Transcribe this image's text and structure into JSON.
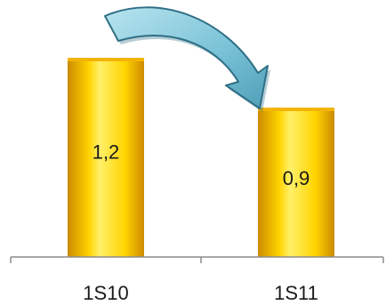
{
  "chart_data": {
    "type": "bar",
    "categories": [
      "1S10",
      "1S11"
    ],
    "values": [
      1.2,
      0.9
    ],
    "value_labels": [
      "1,2",
      "0,9"
    ],
    "title": "",
    "xlabel": "",
    "ylabel": "",
    "ylim": [
      0,
      1.2
    ],
    "grid": false,
    "legend": "none",
    "colors": {
      "bar_edge": "#cc8a00",
      "bar_mid": "#ffd400",
      "bar_highlight": "#fff06a",
      "bar_top": "#f2b400",
      "axis": "#8c8c8c",
      "arrow_fill": "#7cc4d8",
      "arrow_edge": "#2f6f86"
    },
    "annotations": [
      {
        "type": "curved-arrow",
        "icon": "curved-arrow-icon",
        "from": "1S10",
        "to": "1S11"
      }
    ]
  }
}
